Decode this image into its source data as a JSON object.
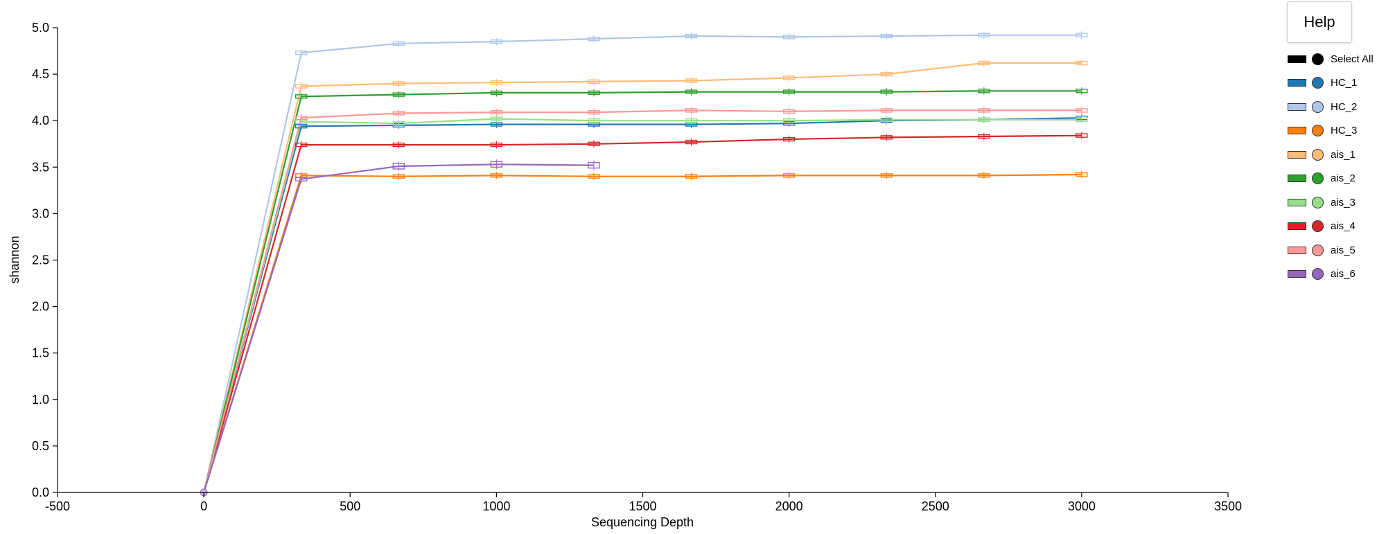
{
  "help": {
    "label": "Help"
  },
  "legend": {
    "select_all": {
      "label": "Select All",
      "color": "#000000"
    }
  },
  "chart_data": {
    "type": "line",
    "xlabel": "Sequencing Depth",
    "ylabel": "shannon",
    "xlim": [
      -500,
      3500
    ],
    "ylim": [
      0,
      5
    ],
    "x_ticks": [
      "-500",
      "0",
      "500",
      "1000",
      "1500",
      "2000",
      "2500",
      "3000",
      "3500"
    ],
    "y_ticks": [
      "0.0",
      "0.5",
      "1.0",
      "1.5",
      "2.0",
      "2.5",
      "3.0",
      "3.5",
      "4.0",
      "4.5",
      "5.0"
    ],
    "grid": false,
    "legend_position": "right",
    "series": [
      {
        "name": "HC_1",
        "color": "#1f77b4",
        "x": [
          0,
          333,
          666,
          1000,
          1333,
          1666,
          2000,
          2333,
          2666,
          3000
        ],
        "y": [
          0,
          3.94,
          3.95,
          3.96,
          3.96,
          3.96,
          3.97,
          4.0,
          4.01,
          4.03
        ]
      },
      {
        "name": "HC_2",
        "color": "#aec7e8",
        "x": [
          0,
          333,
          666,
          1000,
          1333,
          1666,
          2000,
          2333,
          2666,
          3000
        ],
        "y": [
          0,
          4.73,
          4.83,
          4.85,
          4.88,
          4.91,
          4.9,
          4.91,
          4.92,
          4.92
        ]
      },
      {
        "name": "HC_3",
        "color": "#ff7f0e",
        "x": [
          0,
          333,
          666,
          1000,
          1333,
          1666,
          2000,
          2333,
          2666,
          3000
        ],
        "y": [
          0,
          3.41,
          3.4,
          3.41,
          3.4,
          3.4,
          3.41,
          3.41,
          3.41,
          3.42
        ]
      },
      {
        "name": "ais_1",
        "color": "#ffbb78",
        "x": [
          0,
          333,
          666,
          1000,
          1333,
          1666,
          2000,
          2333,
          2666,
          3000
        ],
        "y": [
          0,
          4.37,
          4.4,
          4.41,
          4.42,
          4.43,
          4.46,
          4.5,
          4.62,
          4.62
        ]
      },
      {
        "name": "ais_2",
        "color": "#2ca02c",
        "x": [
          0,
          333,
          666,
          1000,
          1333,
          1666,
          2000,
          2333,
          2666,
          3000
        ],
        "y": [
          0,
          4.26,
          4.28,
          4.3,
          4.3,
          4.31,
          4.31,
          4.31,
          4.32,
          4.32
        ]
      },
      {
        "name": "ais_3",
        "color": "#98df8a",
        "x": [
          0,
          333,
          666,
          1000,
          1333,
          1666,
          2000,
          2333,
          2666,
          3000
        ],
        "y": [
          0,
          3.99,
          3.97,
          4.02,
          4.0,
          4.0,
          4.0,
          4.01,
          4.01,
          4.01
        ]
      },
      {
        "name": "ais_4",
        "color": "#d62728",
        "x": [
          0,
          333,
          666,
          1000,
          1333,
          1666,
          2000,
          2333,
          2666,
          3000
        ],
        "y": [
          0,
          3.74,
          3.74,
          3.74,
          3.75,
          3.77,
          3.8,
          3.82,
          3.83,
          3.84
        ]
      },
      {
        "name": "ais_5",
        "color": "#ff9896",
        "x": [
          0,
          333,
          666,
          1000,
          1333,
          1666,
          2000,
          2333,
          2666,
          3000
        ],
        "y": [
          0,
          4.03,
          4.08,
          4.09,
          4.09,
          4.11,
          4.1,
          4.11,
          4.11,
          4.11
        ]
      },
      {
        "name": "ais_6",
        "color": "#9467bd",
        "x": [
          0,
          333,
          666,
          1000,
          1333
        ],
        "y": [
          0,
          3.37,
          3.51,
          3.53,
          3.52
        ]
      }
    ]
  }
}
